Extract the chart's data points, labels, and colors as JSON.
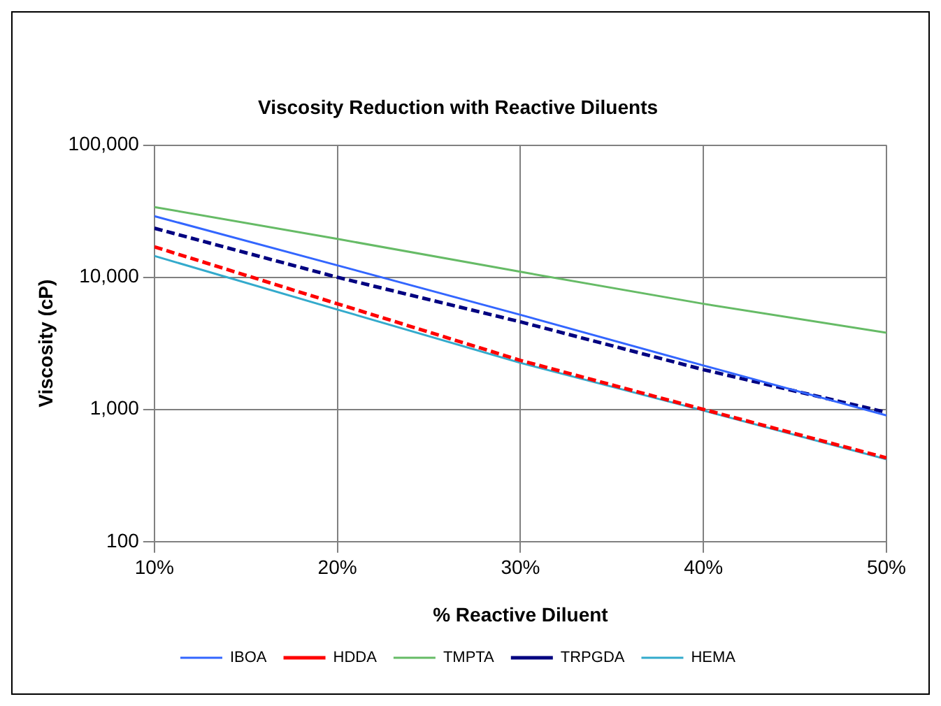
{
  "chart_data": {
    "type": "line",
    "title": "Viscosity Reduction with Reactive Diluents",
    "xlabel": "% Reactive Diluent",
    "ylabel": "Viscosity (cP)",
    "x": [
      10,
      20,
      30,
      40,
      50
    ],
    "series": [
      {
        "name": "IBOA",
        "color": "#3366ff",
        "line_style": "solid",
        "values": [
          29000,
          12300,
          5200,
          2150,
          900
        ]
      },
      {
        "name": "HDDA",
        "color": "#ff0000",
        "line_style": "dashed",
        "values": [
          17000,
          6300,
          2350,
          1000,
          430
        ]
      },
      {
        "name": "TMPTA",
        "color": "#66bb66",
        "line_style": "solid",
        "values": [
          34000,
          19500,
          11000,
          6300,
          3800
        ]
      },
      {
        "name": "TRPGDA",
        "color": "#000080",
        "line_style": "dashed",
        "values": [
          23500,
          10000,
          4600,
          2000,
          950
        ]
      },
      {
        "name": "HEMA",
        "color": "#33aacc",
        "line_style": "solid",
        "values": [
          14500,
          5700,
          2250,
          980,
          420
        ]
      }
    ],
    "xlim": [
      10,
      50
    ],
    "xticks": [
      {
        "value": 10,
        "label": "10%"
      },
      {
        "value": 20,
        "label": "20%"
      },
      {
        "value": 30,
        "label": "30%"
      },
      {
        "value": 40,
        "label": "40%"
      },
      {
        "value": 50,
        "label": "50%"
      }
    ],
    "ylim": [
      100,
      100000
    ],
    "yticks": [
      {
        "value": 100,
        "label": "100"
      },
      {
        "value": 1000,
        "label": "1,000"
      },
      {
        "value": 10000,
        "label": "10,000"
      },
      {
        "value": 100000,
        "label": "100,000"
      }
    ],
    "log": "y",
    "grid": true,
    "legend": "bottom",
    "marker": "none"
  }
}
